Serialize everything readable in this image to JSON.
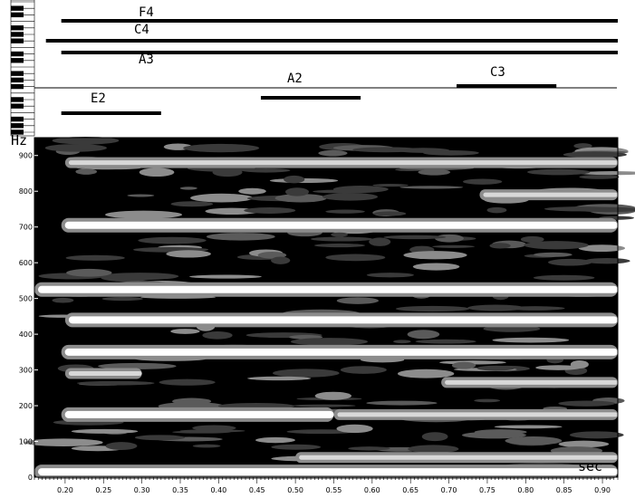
{
  "chart_data": [
    {
      "type": "piano-roll",
      "notes": [
        {
          "label": "F4",
          "start": 0.195,
          "end": 0.92
        },
        {
          "label": "C4",
          "start": 0.175,
          "end": 0.92
        },
        {
          "label": "A3",
          "start": 0.195,
          "end": 0.92
        },
        {
          "label": "E2",
          "start": 0.195,
          "end": 0.325
        },
        {
          "label": "A2",
          "start": 0.455,
          "end": 0.585
        },
        {
          "label": "C3",
          "start": 0.71,
          "end": 0.84
        }
      ]
    },
    {
      "type": "heatmap",
      "subtype": "spectrogram",
      "ylabel": "Hz",
      "xlabel": "sec",
      "xlim": [
        0.16,
        0.92
      ],
      "ylim": [
        0,
        950
      ],
      "xticks": [
        "0.20",
        "0.25",
        "0.30",
        "0.35",
        "0.40",
        "0.45",
        "0.50",
        "0.55",
        "0.60",
        "0.65",
        "0.70",
        "0.75",
        "0.80",
        "0.85",
        "0.90"
      ],
      "xtick_values": [
        0.2,
        0.25,
        0.3,
        0.35,
        0.4,
        0.45,
        0.5,
        0.55,
        0.6,
        0.65,
        0.7,
        0.75,
        0.8,
        0.85,
        0.9
      ],
      "yticks": [
        "900",
        "800",
        "700",
        "600",
        "500",
        "400",
        "300",
        "200",
        "100",
        "0"
      ],
      "ytick_values": [
        900,
        800,
        700,
        600,
        500,
        400,
        300,
        200,
        100,
        0
      ],
      "bands": [
        {
          "freq": 880,
          "start": 0.2,
          "end": 0.92,
          "intensity": "light"
        },
        {
          "freq": 790,
          "start": 0.74,
          "end": 0.92,
          "intensity": "light"
        },
        {
          "freq": 705,
          "start": 0.195,
          "end": 0.92,
          "intensity": "strong"
        },
        {
          "freq": 525,
          "start": 0.16,
          "end": 0.92,
          "intensity": "strong"
        },
        {
          "freq": 440,
          "start": 0.2,
          "end": 0.92,
          "intensity": "strong"
        },
        {
          "freq": 350,
          "start": 0.195,
          "end": 0.92,
          "intensity": "strong"
        },
        {
          "freq": 290,
          "start": 0.2,
          "end": 0.3,
          "intensity": "light"
        },
        {
          "freq": 265,
          "start": 0.69,
          "end": 0.92,
          "intensity": "light"
        },
        {
          "freq": 175,
          "start": 0.195,
          "end": 0.55,
          "intensity": "strong"
        },
        {
          "freq": 175,
          "start": 0.55,
          "end": 0.92,
          "intensity": "light"
        },
        {
          "freq": 55,
          "start": 0.5,
          "end": 0.92,
          "intensity": "light"
        },
        {
          "freq": 15,
          "start": 0.16,
          "end": 0.92,
          "intensity": "strong"
        }
      ],
      "colors": {
        "background": "#000000",
        "low": "#3a3a3a",
        "mid": "#8c8c8c",
        "high": "#ffffff"
      }
    }
  ]
}
